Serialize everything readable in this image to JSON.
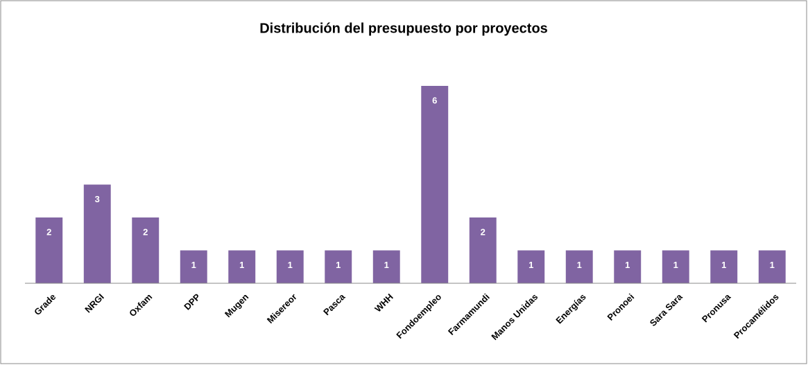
{
  "chart_data": {
    "type": "bar",
    "title": "Distribución del presupuesto por proyectos",
    "categories": [
      "Grade",
      "NRGI",
      "Oxfam",
      "DPP",
      "Mugen",
      "Misereor",
      "Pasca",
      "WHH",
      "Fondoempleo",
      "Farmamundi",
      "Manos Unidas",
      "Energías",
      "Pronoei",
      "Sara Sara",
      "Pronusa",
      "Procamélidos"
    ],
    "values": [
      2,
      3,
      2,
      1,
      1,
      1,
      1,
      1,
      6,
      2,
      1,
      1,
      1,
      1,
      1,
      1
    ],
    "color": "#8064a2",
    "ylim": [
      0,
      6
    ]
  }
}
